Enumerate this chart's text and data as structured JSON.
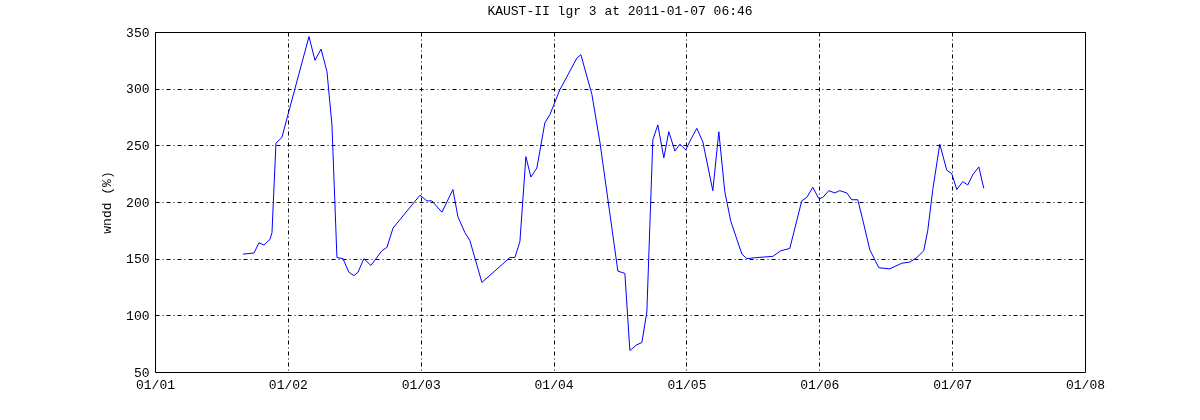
{
  "chart_data": {
    "type": "line",
    "title": "KAUST-II lgr 3 at 2011-01-07 06:46",
    "ylabel": "wndd (%)",
    "x": [
      "2011-01-01T15:53",
      "2011-01-01T17:53",
      "2011-01-01T18:47",
      "2011-01-01T19:41",
      "2011-01-01T20:46",
      "2011-01-01T21:08",
      "2011-01-01T21:51",
      "2011-01-01T22:56",
      "2011-01-02T00:01",
      "2011-01-02T03:49",
      "2011-01-02T04:54",
      "2011-01-02T06:00",
      "2011-01-02T07:04",
      "2011-01-02T07:58",
      "2011-01-02T08:52",
      "2011-01-02T09:57",
      "2011-01-02T11:02",
      "2011-01-02T11:56",
      "2011-01-02T12:40",
      "2011-01-02T13:44",
      "2011-01-02T15:00",
      "2011-01-02T17:00",
      "2011-01-02T17:54",
      "2011-01-02T19:00",
      "2011-01-02T23:52",
      "2011-01-03T01:07",
      "2011-01-03T02:01",
      "2011-01-03T03:50",
      "2011-01-03T05:49",
      "2011-01-03T06:43",
      "2011-01-03T07:59",
      "2011-01-03T08:53",
      "2011-01-03T11:03",
      "2011-01-03T16:07",
      "2011-01-03T17:01",
      "2011-01-03T17:55",
      "2011-01-03T19:00",
      "2011-01-03T19:54",
      "2011-01-03T20:59",
      "2011-01-03T22:26",
      "2011-01-03T23:20",
      "2011-01-04T01:08",
      "2011-01-04T04:13",
      "2011-01-04T04:56",
      "2011-01-04T06:55",
      "2011-01-04T08:22",
      "2011-01-04T11:37",
      "2011-01-04T12:53",
      "2011-01-04T13:47",
      "2011-01-04T15:02",
      "2011-01-04T15:57",
      "2011-01-04T16:51",
      "2011-01-04T17:56",
      "2011-01-04T18:50",
      "2011-01-04T19:55",
      "2011-01-04T20:49",
      "2011-01-04T21:55",
      "2011-01-04T22:49",
      "2011-01-04T23:53",
      "2011-01-05T00:59",
      "2011-01-05T01:53",
      "2011-01-05T02:58",
      "2011-01-05T04:46",
      "2011-01-05T05:51",
      "2011-01-05T06:56",
      "2011-01-05T08:01",
      "2011-01-05T10:01",
      "2011-01-05T10:55",
      "2011-01-05T12:43",
      "2011-01-05T15:36",
      "2011-01-05T17:03",
      "2011-01-05T18:40",
      "2011-01-05T20:50",
      "2011-01-05T21:44",
      "2011-01-05T22:50",
      "2011-01-05T23:55",
      "2011-01-06T00:38",
      "2011-01-06T01:43",
      "2011-01-06T02:48",
      "2011-01-06T03:42",
      "2011-01-06T04:58",
      "2011-01-06T05:52",
      "2011-01-06T06:57",
      "2011-01-06T07:52",
      "2011-01-06T09:07",
      "2011-01-06T10:45",
      "2011-01-06T12:44",
      "2011-01-06T14:54",
      "2011-01-06T16:21",
      "2011-01-06T17:37",
      "2011-01-06T18:52",
      "2011-01-06T19:36",
      "2011-01-06T20:30",
      "2011-01-06T21:46",
      "2011-01-06T23:02",
      "2011-01-06T23:56",
      "2011-01-07T00:50",
      "2011-01-07T01:55",
      "2011-01-07T02:49",
      "2011-01-07T03:43",
      "2011-01-07T04:49",
      "2011-01-07T05:43"
    ],
    "series": [
      {
        "color": "#0000ff",
        "values": [
          154,
          155,
          164,
          162,
          167,
          173,
          252,
          257,
          277,
          346,
          325,
          335,
          315,
          268,
          151,
          150,
          138,
          135,
          138,
          150,
          144,
          157,
          160,
          177,
          206,
          201,
          201,
          191,
          211,
          187,
          173,
          166,
          129,
          151,
          151,
          165,
          240,
          222,
          230,
          270,
          277,
          299,
          327,
          330,
          295,
          253,
          139,
          137,
          69,
          74,
          76,
          103,
          255,
          268,
          239,
          262,
          245,
          251,
          246,
          257,
          265,
          253,
          210,
          262,
          209,
          183,
          154,
          150,
          151,
          152,
          157,
          159,
          201,
          204,
          213,
          203,
          204,
          210,
          208,
          210,
          208,
          202,
          202,
          184,
          158,
          142,
          141,
          146,
          147,
          151,
          157,
          175,
          211,
          251,
          228,
          225,
          211,
          218,
          215,
          224,
          231,
          212
        ]
      }
    ],
    "xlim": [
      "2011-01-01",
      "2011-01-08"
    ],
    "xticks": [
      {
        "value": "2011-01-01",
        "label": "01/01"
      },
      {
        "value": "2011-01-02",
        "label": "01/02"
      },
      {
        "value": "2011-01-03",
        "label": "01/03"
      },
      {
        "value": "2011-01-04",
        "label": "01/04"
      },
      {
        "value": "2011-01-05",
        "label": "01/05"
      },
      {
        "value": "2011-01-06",
        "label": "01/06"
      },
      {
        "value": "2011-01-07",
        "label": "01/07"
      },
      {
        "value": "2011-01-08",
        "label": "01/08"
      }
    ],
    "ylim": [
      50,
      350
    ],
    "yticks": [
      50,
      100,
      150,
      200,
      250,
      300,
      350
    ],
    "grid": true
  }
}
